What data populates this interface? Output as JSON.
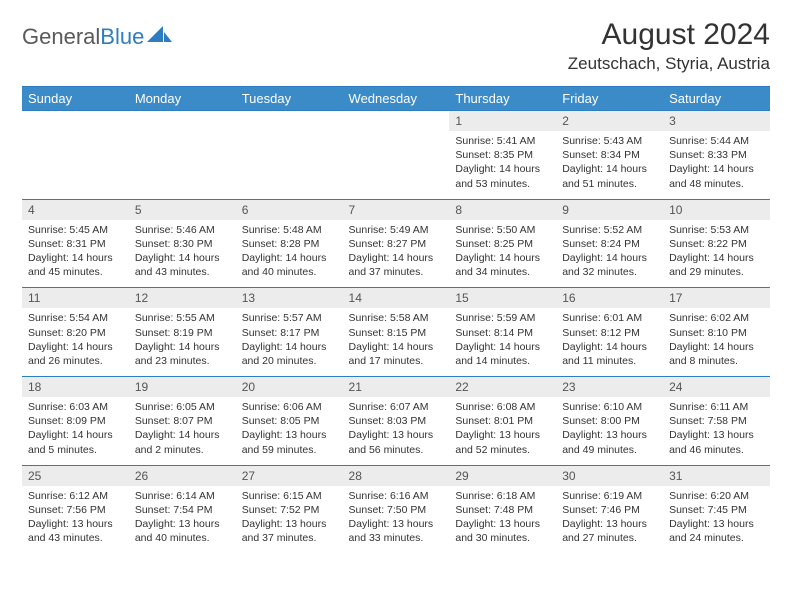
{
  "brand": {
    "part1": "General",
    "part2": "Blue"
  },
  "title": "August 2024",
  "location": "Zeutschach, Styria, Austria",
  "colors": {
    "header_bg": "#3b8bc9",
    "rule": "#2d7dc0",
    "daynum_bg": "#ececec",
    "text": "#333333"
  },
  "day_headers": [
    "Sunday",
    "Monday",
    "Tuesday",
    "Wednesday",
    "Thursday",
    "Friday",
    "Saturday"
  ],
  "weeks": [
    [
      null,
      null,
      null,
      null,
      {
        "n": "1",
        "sunrise": "5:41 AM",
        "sunset": "8:35 PM",
        "dl1": "Daylight: 14 hours",
        "dl2": "and 53 minutes."
      },
      {
        "n": "2",
        "sunrise": "5:43 AM",
        "sunset": "8:34 PM",
        "dl1": "Daylight: 14 hours",
        "dl2": "and 51 minutes."
      },
      {
        "n": "3",
        "sunrise": "5:44 AM",
        "sunset": "8:33 PM",
        "dl1": "Daylight: 14 hours",
        "dl2": "and 48 minutes."
      }
    ],
    [
      {
        "n": "4",
        "sunrise": "5:45 AM",
        "sunset": "8:31 PM",
        "dl1": "Daylight: 14 hours",
        "dl2": "and 45 minutes."
      },
      {
        "n": "5",
        "sunrise": "5:46 AM",
        "sunset": "8:30 PM",
        "dl1": "Daylight: 14 hours",
        "dl2": "and 43 minutes."
      },
      {
        "n": "6",
        "sunrise": "5:48 AM",
        "sunset": "8:28 PM",
        "dl1": "Daylight: 14 hours",
        "dl2": "and 40 minutes."
      },
      {
        "n": "7",
        "sunrise": "5:49 AM",
        "sunset": "8:27 PM",
        "dl1": "Daylight: 14 hours",
        "dl2": "and 37 minutes."
      },
      {
        "n": "8",
        "sunrise": "5:50 AM",
        "sunset": "8:25 PM",
        "dl1": "Daylight: 14 hours",
        "dl2": "and 34 minutes."
      },
      {
        "n": "9",
        "sunrise": "5:52 AM",
        "sunset": "8:24 PM",
        "dl1": "Daylight: 14 hours",
        "dl2": "and 32 minutes."
      },
      {
        "n": "10",
        "sunrise": "5:53 AM",
        "sunset": "8:22 PM",
        "dl1": "Daylight: 14 hours",
        "dl2": "and 29 minutes."
      }
    ],
    [
      {
        "n": "11",
        "sunrise": "5:54 AM",
        "sunset": "8:20 PM",
        "dl1": "Daylight: 14 hours",
        "dl2": "and 26 minutes."
      },
      {
        "n": "12",
        "sunrise": "5:55 AM",
        "sunset": "8:19 PM",
        "dl1": "Daylight: 14 hours",
        "dl2": "and 23 minutes."
      },
      {
        "n": "13",
        "sunrise": "5:57 AM",
        "sunset": "8:17 PM",
        "dl1": "Daylight: 14 hours",
        "dl2": "and 20 minutes."
      },
      {
        "n": "14",
        "sunrise": "5:58 AM",
        "sunset": "8:15 PM",
        "dl1": "Daylight: 14 hours",
        "dl2": "and 17 minutes."
      },
      {
        "n": "15",
        "sunrise": "5:59 AM",
        "sunset": "8:14 PM",
        "dl1": "Daylight: 14 hours",
        "dl2": "and 14 minutes."
      },
      {
        "n": "16",
        "sunrise": "6:01 AM",
        "sunset": "8:12 PM",
        "dl1": "Daylight: 14 hours",
        "dl2": "and 11 minutes."
      },
      {
        "n": "17",
        "sunrise": "6:02 AM",
        "sunset": "8:10 PM",
        "dl1": "Daylight: 14 hours",
        "dl2": "and 8 minutes."
      }
    ],
    [
      {
        "n": "18",
        "sunrise": "6:03 AM",
        "sunset": "8:09 PM",
        "dl1": "Daylight: 14 hours",
        "dl2": "and 5 minutes."
      },
      {
        "n": "19",
        "sunrise": "6:05 AM",
        "sunset": "8:07 PM",
        "dl1": "Daylight: 14 hours",
        "dl2": "and 2 minutes."
      },
      {
        "n": "20",
        "sunrise": "6:06 AM",
        "sunset": "8:05 PM",
        "dl1": "Daylight: 13 hours",
        "dl2": "and 59 minutes."
      },
      {
        "n": "21",
        "sunrise": "6:07 AM",
        "sunset": "8:03 PM",
        "dl1": "Daylight: 13 hours",
        "dl2": "and 56 minutes."
      },
      {
        "n": "22",
        "sunrise": "6:08 AM",
        "sunset": "8:01 PM",
        "dl1": "Daylight: 13 hours",
        "dl2": "and 52 minutes."
      },
      {
        "n": "23",
        "sunrise": "6:10 AM",
        "sunset": "8:00 PM",
        "dl1": "Daylight: 13 hours",
        "dl2": "and 49 minutes."
      },
      {
        "n": "24",
        "sunrise": "6:11 AM",
        "sunset": "7:58 PM",
        "dl1": "Daylight: 13 hours",
        "dl2": "and 46 minutes."
      }
    ],
    [
      {
        "n": "25",
        "sunrise": "6:12 AM",
        "sunset": "7:56 PM",
        "dl1": "Daylight: 13 hours",
        "dl2": "and 43 minutes."
      },
      {
        "n": "26",
        "sunrise": "6:14 AM",
        "sunset": "7:54 PM",
        "dl1": "Daylight: 13 hours",
        "dl2": "and 40 minutes."
      },
      {
        "n": "27",
        "sunrise": "6:15 AM",
        "sunset": "7:52 PM",
        "dl1": "Daylight: 13 hours",
        "dl2": "and 37 minutes."
      },
      {
        "n": "28",
        "sunrise": "6:16 AM",
        "sunset": "7:50 PM",
        "dl1": "Daylight: 13 hours",
        "dl2": "and 33 minutes."
      },
      {
        "n": "29",
        "sunrise": "6:18 AM",
        "sunset": "7:48 PM",
        "dl1": "Daylight: 13 hours",
        "dl2": "and 30 minutes."
      },
      {
        "n": "30",
        "sunrise": "6:19 AM",
        "sunset": "7:46 PM",
        "dl1": "Daylight: 13 hours",
        "dl2": "and 27 minutes."
      },
      {
        "n": "31",
        "sunrise": "6:20 AM",
        "sunset": "7:45 PM",
        "dl1": "Daylight: 13 hours",
        "dl2": "and 24 minutes."
      }
    ]
  ],
  "labels": {
    "sunrise_prefix": "Sunrise: ",
    "sunset_prefix": "Sunset: "
  }
}
